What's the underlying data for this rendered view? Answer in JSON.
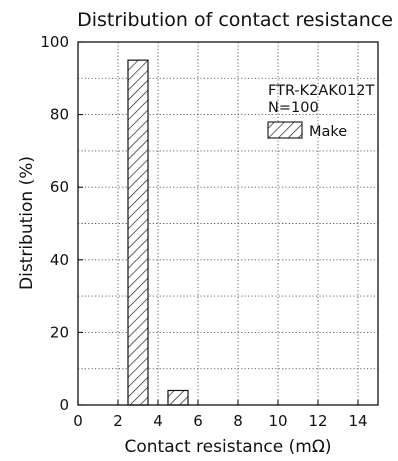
{
  "chart_data": {
    "type": "bar",
    "title": "Distribution of contact resistance",
    "xlabel": "Contact resistance (mΩ)",
    "ylabel": "Distribution (%)",
    "xlim": [
      0,
      15
    ],
    "ylim": [
      0,
      100
    ],
    "xticks": [
      0,
      2,
      4,
      6,
      8,
      10,
      12,
      14
    ],
    "yticks": [
      0,
      20,
      40,
      60,
      80,
      100
    ],
    "grid": true,
    "bin_width": 1,
    "bars": [
      {
        "x_start": 2.5,
        "x_end": 3.5,
        "value": 95
      },
      {
        "x_start": 4.5,
        "x_end": 5.5,
        "value": 4
      }
    ],
    "series": [
      {
        "name": "Make",
        "pattern": "diagonal-hatch"
      }
    ],
    "annotations": [
      "FTR-K2AK012T",
      "N=100"
    ],
    "legend_position": "top-right"
  }
}
